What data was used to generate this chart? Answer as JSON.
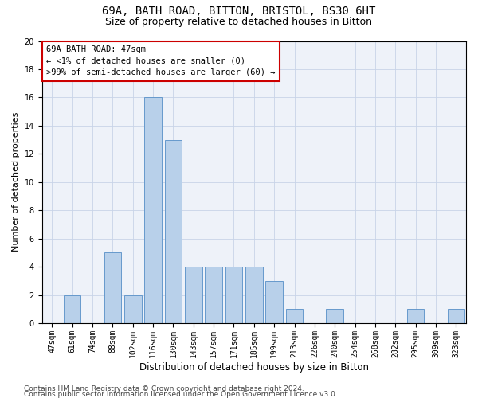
{
  "title1": "69A, BATH ROAD, BITTON, BRISTOL, BS30 6HT",
  "title2": "Size of property relative to detached houses in Bitton",
  "xlabel": "Distribution of detached houses by size in Bitton",
  "ylabel": "Number of detached properties",
  "categories": [
    "47sqm",
    "61sqm",
    "74sqm",
    "88sqm",
    "102sqm",
    "116sqm",
    "130sqm",
    "143sqm",
    "157sqm",
    "171sqm",
    "185sqm",
    "199sqm",
    "213sqm",
    "226sqm",
    "240sqm",
    "254sqm",
    "268sqm",
    "282sqm",
    "295sqm",
    "309sqm",
    "323sqm"
  ],
  "values": [
    0,
    2,
    0,
    5,
    2,
    16,
    13,
    4,
    4,
    4,
    4,
    3,
    1,
    0,
    1,
    0,
    0,
    0,
    1,
    0,
    1
  ],
  "bar_color": "#b8d0ea",
  "bar_edge_color": "#6699cc",
  "highlight_box_color": "#cc0000",
  "annotation_line1": "69A BATH ROAD: 47sqm",
  "annotation_line2": "← <1% of detached houses are smaller (0)",
  "annotation_line3": ">99% of semi-detached houses are larger (60) →",
  "ylim": [
    0,
    20
  ],
  "yticks": [
    0,
    2,
    4,
    6,
    8,
    10,
    12,
    14,
    16,
    18,
    20
  ],
  "grid_color": "#c8d4e8",
  "background_color": "#eef2f9",
  "footer1": "Contains HM Land Registry data © Crown copyright and database right 2024.",
  "footer2": "Contains public sector information licensed under the Open Government Licence v3.0.",
  "title1_fontsize": 10,
  "title2_fontsize": 9,
  "xlabel_fontsize": 8.5,
  "ylabel_fontsize": 8,
  "tick_fontsize": 7,
  "annotation_fontsize": 7.5,
  "footer_fontsize": 6.5
}
